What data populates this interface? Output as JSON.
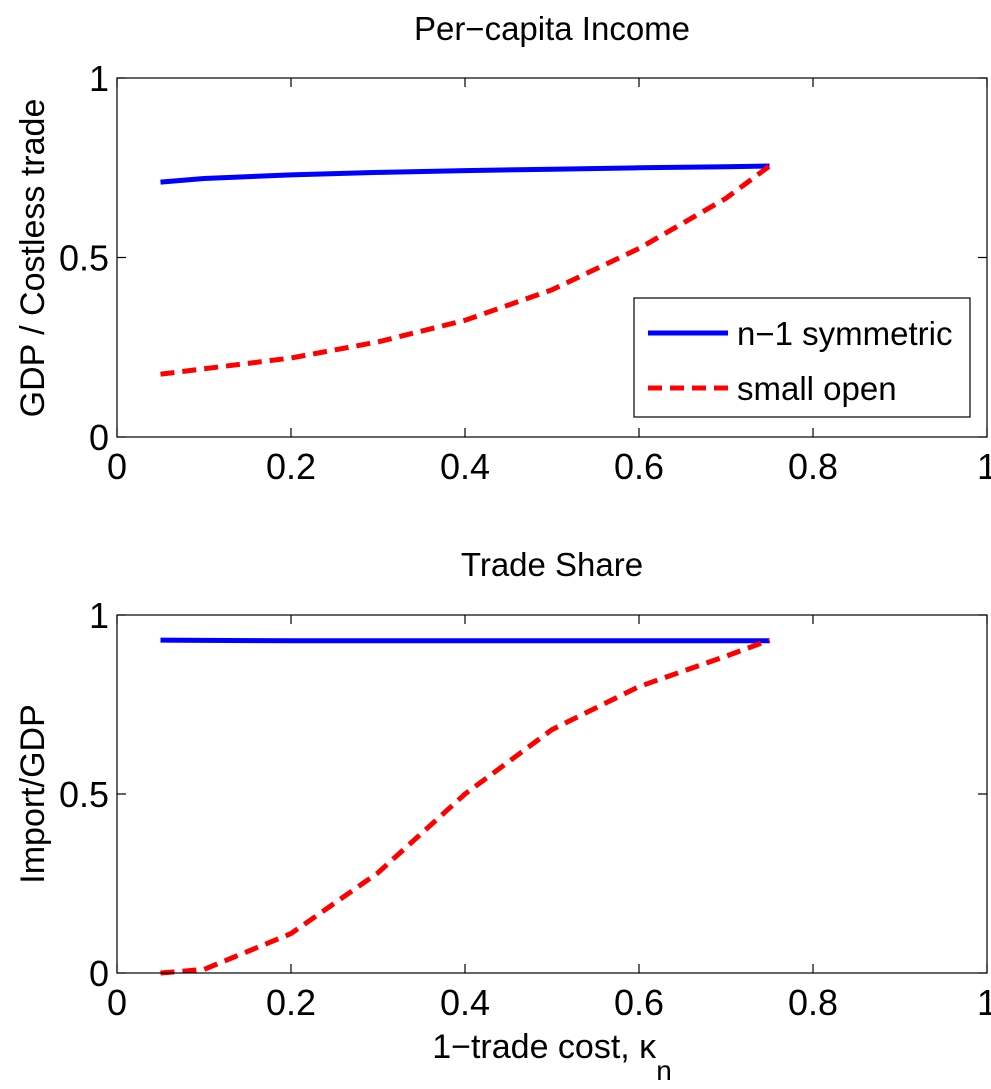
{
  "chart_data": [
    {
      "type": "line",
      "title": "Per−capita Income",
      "xlabel": "",
      "ylabel": "GDP / Costless trade",
      "xlim": [
        0,
        1
      ],
      "ylim": [
        0,
        1
      ],
      "x_ticks": [
        "0",
        "0.2",
        "0.4",
        "0.6",
        "0.8",
        "1"
      ],
      "y_ticks": [
        "0",
        "0.5",
        "1"
      ],
      "grid": false,
      "legend_position": "bottom-right",
      "series": [
        {
          "name": "n−1 symmetric",
          "color": "#0000ff",
          "style": "solid",
          "x": [
            0.05,
            0.1,
            0.2,
            0.3,
            0.4,
            0.5,
            0.6,
            0.7,
            0.75
          ],
          "y": [
            0.71,
            0.72,
            0.73,
            0.737,
            0.742,
            0.746,
            0.75,
            0.753,
            0.755
          ]
        },
        {
          "name": "small open",
          "color": "#ff0000",
          "style": "dashed",
          "x": [
            0.05,
            0.1,
            0.2,
            0.3,
            0.4,
            0.5,
            0.6,
            0.7,
            0.75
          ],
          "y": [
            0.175,
            0.19,
            0.22,
            0.265,
            0.325,
            0.41,
            0.525,
            0.665,
            0.755
          ]
        }
      ]
    },
    {
      "type": "line",
      "title": "Trade Share",
      "xlabel": "1−trade cost, κ",
      "xlabel_subscript": "n",
      "ylabel": "Import/GDP",
      "xlim": [
        0,
        1
      ],
      "ylim": [
        0,
        1
      ],
      "x_ticks": [
        "0",
        "0.2",
        "0.4",
        "0.6",
        "0.8",
        "1"
      ],
      "y_ticks": [
        "0",
        "0.5",
        "1"
      ],
      "grid": false,
      "series": [
        {
          "color": "#0000ff",
          "style": "solid",
          "x": [
            0.05,
            0.1,
            0.2,
            0.3,
            0.4,
            0.5,
            0.6,
            0.7,
            0.75
          ],
          "y": [
            0.93,
            0.929,
            0.928,
            0.928,
            0.928,
            0.928,
            0.928,
            0.928,
            0.928
          ]
        },
        {
          "color": "#ff0000",
          "style": "dashed",
          "x": [
            0.05,
            0.1,
            0.2,
            0.3,
            0.4,
            0.5,
            0.6,
            0.7,
            0.75
          ],
          "y": [
            0.0,
            0.01,
            0.11,
            0.28,
            0.5,
            0.68,
            0.8,
            0.885,
            0.93
          ]
        }
      ]
    }
  ]
}
